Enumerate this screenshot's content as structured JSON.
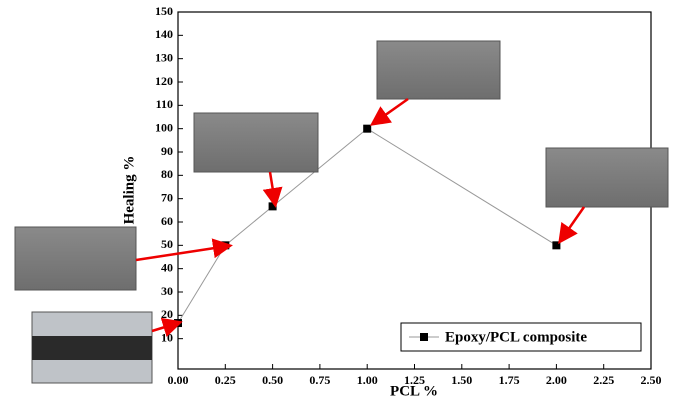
{
  "chart_data": {
    "type": "line",
    "x_label": "PCL %",
    "y_label": "Healing %",
    "x": [
      0,
      0.25,
      0.5,
      1,
      2
    ],
    "series": [
      {
        "name": "Epoxy/PCL composite",
        "color": "#000000",
        "values": [
          16.7,
          50,
          66.7,
          100,
          50
        ]
      }
    ],
    "xlim": [
      0,
      2.5
    ],
    "xticks": [
      {
        "value": 0,
        "label": "0.00"
      },
      0.25,
      {
        "value": 0.5,
        "label": "0.50"
      },
      0.75,
      {
        "value": 1,
        "label": "1.00"
      },
      1.25,
      {
        "value": 1.5,
        "label": "1.50"
      },
      1.75,
      {
        "value": 2,
        "label": "2.00"
      },
      2.25,
      {
        "value": 2.5,
        "label": "2.50"
      }
    ],
    "ylim": [
      -3,
      150
    ],
    "yticks": [
      10,
      20,
      30,
      40,
      50,
      60,
      70,
      80,
      90,
      100,
      110,
      120,
      130,
      140,
      150
    ],
    "legend": "lower right"
  }
}
